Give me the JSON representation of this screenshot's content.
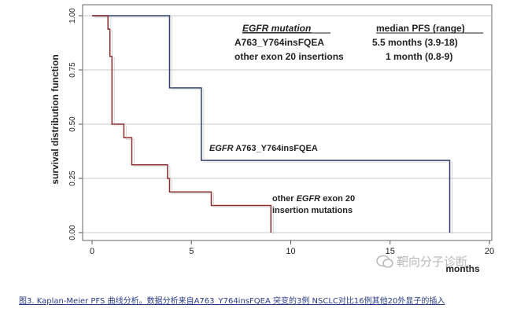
{
  "chart_data": {
    "type": "line",
    "step": true,
    "ylabel": "survival distribution function",
    "xlabel": "months",
    "xlim": [
      0,
      20
    ],
    "ylim": [
      0,
      1
    ],
    "xticks": [
      "0",
      "5",
      "10",
      "15",
      "20"
    ],
    "yticks": [
      "0.00",
      "0.25",
      "0.50",
      "0.75",
      "1.00"
    ],
    "ytick_values": [
      0,
      0.25,
      0.5,
      0.75,
      1.0
    ],
    "xtick_values": [
      0,
      5,
      10,
      15,
      20
    ],
    "grid": "horizontal",
    "legend_table": {
      "header_left": "EGFR mutation",
      "header_right": "median PFS (range)",
      "rows": [
        {
          "left": "A763_Y764insFQEA",
          "right": "5.5 months (3.9-18)"
        },
        {
          "left": "other exon 20 insertions",
          "right": "1 month (0.8-9)"
        }
      ]
    },
    "annotations": {
      "series1_label_italic": "EGFR",
      "series1_label_rest": " A763_Y764insFQEA",
      "series2_line1_pre": "other ",
      "series2_line1_italic": "EGFR",
      "series2_line1_post": " exon 20",
      "series2_line2": "insertion mutations"
    },
    "series": [
      {
        "color": "#2c3e6e",
        "points": [
          [
            0,
            1.0
          ],
          [
            3.9,
            1.0
          ],
          [
            3.9,
            0.667
          ],
          [
            5.5,
            0.667
          ],
          [
            5.5,
            0.333
          ],
          [
            18,
            0.333
          ],
          [
            18,
            0.0
          ]
        ]
      },
      {
        "color": "#8b2a2a",
        "points": [
          [
            0,
            1.0
          ],
          [
            0.8,
            1.0
          ],
          [
            0.8,
            0.938
          ],
          [
            0.9,
            0.938
          ],
          [
            0.9,
            0.8125
          ],
          [
            1.0,
            0.8125
          ],
          [
            1.0,
            0.5
          ],
          [
            1.6,
            0.5
          ],
          [
            1.6,
            0.4375
          ],
          [
            2.0,
            0.4375
          ],
          [
            2.0,
            0.3125
          ],
          [
            3.8,
            0.3125
          ],
          [
            3.8,
            0.25
          ],
          [
            3.9,
            0.25
          ],
          [
            3.9,
            0.1875
          ],
          [
            6.0,
            0.1875
          ],
          [
            6.0,
            0.125
          ],
          [
            9.0,
            0.125
          ],
          [
            9.0,
            0.0
          ]
        ]
      }
    ]
  },
  "caption": "图3. Kaplan-Meier PFS 曲线分析。数据分析来自A763_Y764insFQEA 突变的3例 NSCLC对比16例其他20外显子的插入",
  "watermark": "靶向分子诊断"
}
